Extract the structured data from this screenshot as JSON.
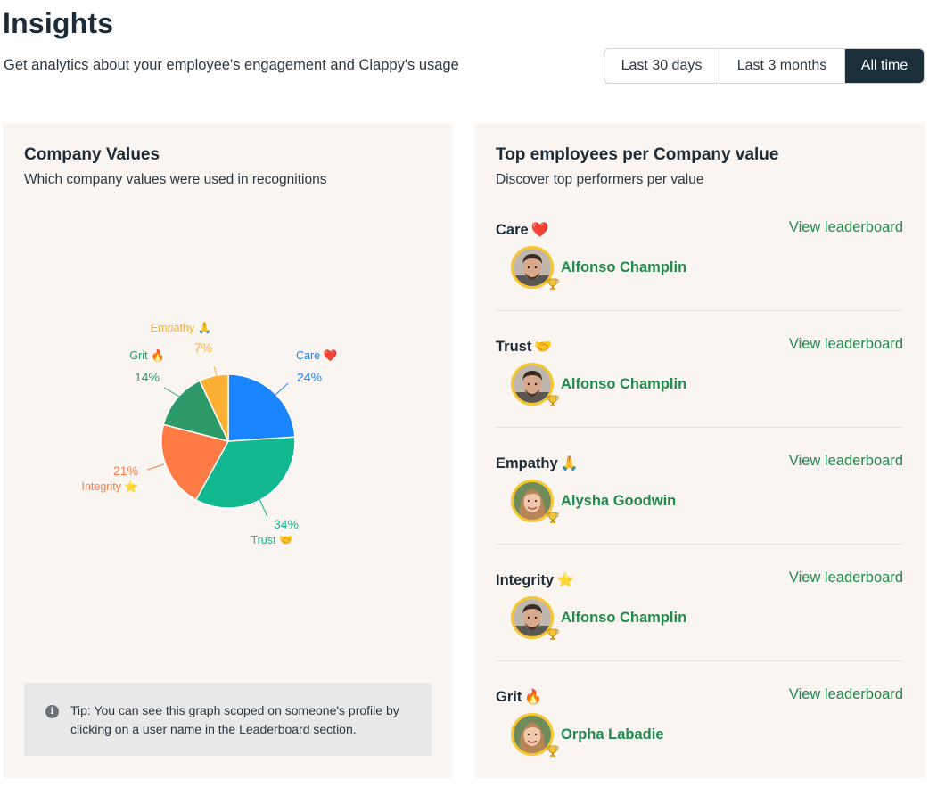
{
  "header": {
    "title": "Insights",
    "subtitle": "Get analytics about your employee's engagement and Clappy's usage",
    "ranges": [
      "Last 30 days",
      "Last 3 months",
      "All time"
    ],
    "active_range": "All time"
  },
  "company_values": {
    "title": "Company Values",
    "subtitle": "Which company values were used in recognitions",
    "tip": "Tip: You can see this graph scoped on someone's profile by clicking on a user name in the Leaderboard section.",
    "tip_icon": "info-icon"
  },
  "chart_data": {
    "type": "pie",
    "slices": [
      {
        "label": "Care ❤️",
        "value": 24,
        "percent_label": "24%",
        "color": "#1a85ff"
      },
      {
        "label": "Trust 🤝",
        "value": 34,
        "percent_label": "34%",
        "color": "#12b88f"
      },
      {
        "label": "Integrity ⭐",
        "value": 21,
        "percent_label": "21%",
        "color": "#ff7a45"
      },
      {
        "label": "Grit 🔥",
        "value": 14,
        "percent_label": "14%",
        "color": "#2e9a6a"
      },
      {
        "label": "Empathy 🙏",
        "value": 7,
        "percent_label": "7%",
        "color": "#fbb034"
      }
    ]
  },
  "top_employees": {
    "title": "Top employees per Company value",
    "subtitle": "Discover top performers per value",
    "link_label": "View leaderboard",
    "rows": [
      {
        "value": "Care",
        "emoji": "❤️",
        "employee": "Alfonso Champlin",
        "avatar": "male"
      },
      {
        "value": "Trust",
        "emoji": "🤝",
        "employee": "Alfonso Champlin",
        "avatar": "male"
      },
      {
        "value": "Empathy",
        "emoji": "🙏",
        "employee": "Alysha Goodwin",
        "avatar": "female"
      },
      {
        "value": "Integrity",
        "emoji": "⭐",
        "employee": "Alfonso Champlin",
        "avatar": "male"
      },
      {
        "value": "Grit",
        "emoji": "🔥",
        "employee": "Orpha Labadie",
        "avatar": "female"
      }
    ]
  },
  "colors": {
    "accent_green": "#1f8a4c",
    "dark": "#1b2f3b",
    "card_bg": "#fbf5f1",
    "avatar_ring": "#f7c62e"
  }
}
